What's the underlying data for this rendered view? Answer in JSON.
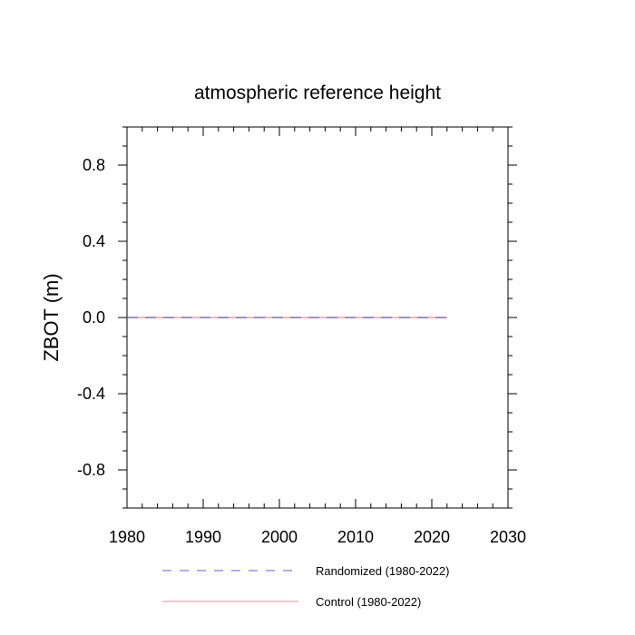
{
  "chart_data": {
    "type": "line",
    "title": "atmospheric reference height",
    "xlabel": "",
    "ylabel": "ZBOT  (m)",
    "xlim": [
      1980,
      2030
    ],
    "ylim": [
      -1.0,
      1.0
    ],
    "xticks": [
      1980,
      1990,
      2000,
      2010,
      2020,
      2030
    ],
    "xtick_labels": [
      "1980",
      "1990",
      "2000",
      "2010",
      "2020",
      "2030"
    ],
    "yticks": [
      0.8,
      0.4,
      0.0,
      -0.4,
      -0.8
    ],
    "ytick_labels": [
      "0.8",
      "0.4",
      "0.0",
      "-0.4",
      "-0.8"
    ],
    "grid": false,
    "legend_position": "bottom",
    "series": [
      {
        "name": "Randomized (1980-2022)",
        "color": "#6a5acd",
        "dash": "dashed",
        "x": [
          1980,
          2022
        ],
        "y": [
          0.0,
          0.0
        ]
      },
      {
        "name": "Control (1980-2022)",
        "color": "#f4888a",
        "dash": "solid",
        "x": [
          1980,
          2022
        ],
        "y": [
          0.0,
          0.0
        ]
      }
    ]
  }
}
